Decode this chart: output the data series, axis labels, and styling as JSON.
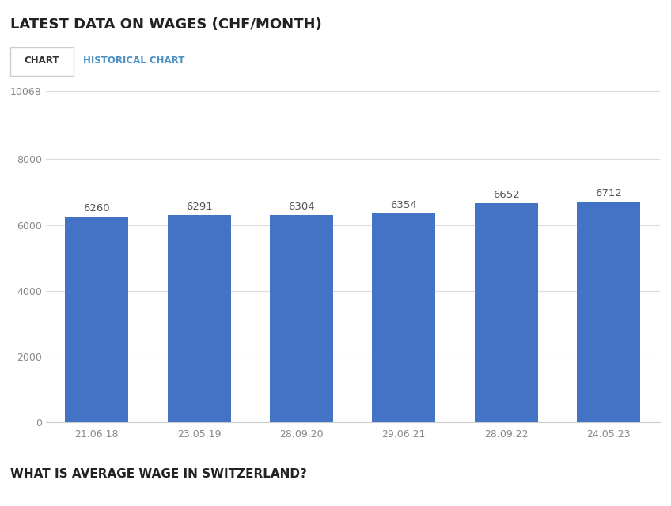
{
  "title": "LATEST DATA ON WAGES (CHF/MONTH)",
  "subtitle": "WHAT IS AVERAGE WAGE IN SWITZERLAND?",
  "tab1": "CHART",
  "tab2": "HISTORICAL CHART",
  "categories": [
    "21.06.18",
    "23.05.19",
    "28.09.20",
    "29.06.21",
    "28.09.22",
    "24.05.23"
  ],
  "values": [
    6260,
    6291,
    6304,
    6354,
    6652,
    6712
  ],
  "bar_color": "#4472C4",
  "background_color": "#ffffff",
  "ylim": [
    0,
    10068
  ],
  "yticks": [
    0,
    2000,
    4000,
    6000,
    8000,
    10068
  ],
  "ytick_labels": [
    "0",
    "2000",
    "4000",
    "6000",
    "8000",
    "10068"
  ],
  "grid_color": "#dddddd",
  "title_fontsize": 13,
  "tick_fontsize": 9,
  "annotation_fontsize": 9.5,
  "tab_border_color": "#cccccc",
  "tab1_text_color": "#333333",
  "tab2_text_color": "#4a90c4",
  "subtitle_fontsize": 11
}
